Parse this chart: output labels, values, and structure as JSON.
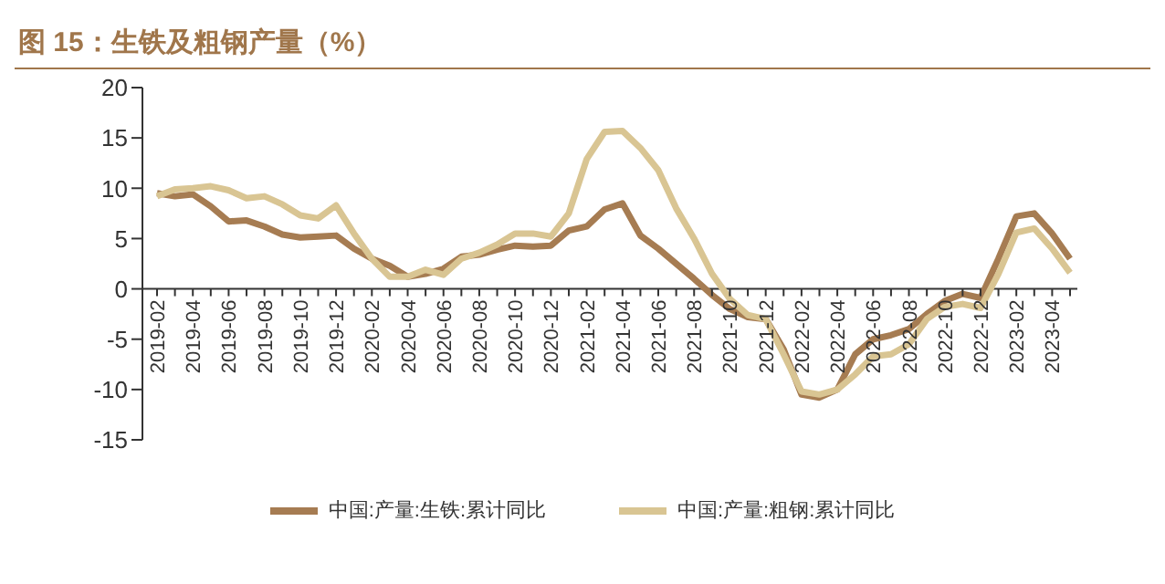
{
  "chart_data": {
    "type": "line",
    "title": "图 15：生铁及粗钢产量（%）",
    "categories": [
      "2019-02",
      null,
      "2019-04",
      null,
      "2019-06",
      null,
      "2019-08",
      null,
      "2019-10",
      null,
      "2019-12",
      null,
      "2020-02",
      null,
      "2020-04",
      null,
      "2020-06",
      null,
      "2020-08",
      null,
      "2020-10",
      null,
      "2020-12",
      null,
      "2021-02",
      null,
      "2021-04",
      null,
      "2021-06",
      null,
      "2021-08",
      null,
      "2021-10",
      null,
      "2021-12",
      null,
      "2022-02",
      null,
      "2022-04",
      null,
      "2022-06",
      null,
      "2022-08",
      null,
      "2022-10",
      null,
      "2022-12",
      null,
      "2023-02",
      null,
      "2023-04",
      null
    ],
    "series": [
      {
        "name": "中国:产量:生铁:累计同比",
        "color": "#a67c52",
        "values": [
          9.5,
          9.2,
          9.4,
          8.2,
          6.7,
          6.8,
          6.2,
          5.4,
          5.1,
          5.2,
          5.3,
          4.0,
          3.0,
          2.3,
          1.2,
          1.5,
          2.0,
          3.2,
          3.4,
          3.9,
          4.3,
          4.2,
          4.3,
          5.8,
          6.2,
          7.9,
          8.5,
          5.3,
          4.0,
          2.5,
          1.0,
          -0.6,
          -2.0,
          -2.8,
          -3.0,
          -6.0,
          -10.5,
          -10.8,
          -10.0,
          -6.5,
          -5.0,
          -4.6,
          -4.0,
          -2.5,
          -1.2,
          -0.5,
          -0.9,
          3.0,
          7.2,
          7.5,
          5.5,
          3.0
        ]
      },
      {
        "name": "中国:产量:粗钢:累计同比",
        "color": "#d9c593",
        "values": [
          9.2,
          9.9,
          10.0,
          10.2,
          9.8,
          9.0,
          9.2,
          8.4,
          7.3,
          7.0,
          8.3,
          5.5,
          3.0,
          1.2,
          1.2,
          1.9,
          1.4,
          3.0,
          3.6,
          4.4,
          5.5,
          5.5,
          5.2,
          7.5,
          12.9,
          15.6,
          15.7,
          14.0,
          11.8,
          8.0,
          5.0,
          1.5,
          -1.0,
          -2.6,
          -3.0,
          -6.5,
          -10.2,
          -10.5,
          -10.0,
          -8.5,
          -6.7,
          -6.5,
          -5.5,
          -3.0,
          -1.8,
          -1.5,
          -1.9,
          1.5,
          5.6,
          6.0,
          4.0,
          1.6
        ]
      }
    ],
    "ylim": [
      -15,
      20
    ],
    "yticks": [
      -15,
      -10,
      -5,
      0,
      5,
      10,
      15,
      20
    ],
    "grid": false,
    "legend": "bottom",
    "marker": "none",
    "line_style": "solid"
  }
}
